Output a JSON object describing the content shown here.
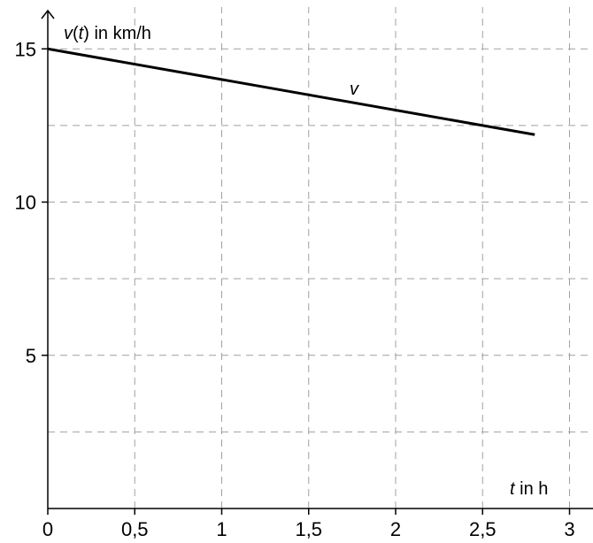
{
  "chart_data": {
    "type": "line",
    "xlabel_var": "t",
    "xlabel_rest": " in h",
    "ylabel_var1": "v",
    "ylabel_paren_open": "(",
    "ylabel_var2": "t",
    "ylabel_rest": ") in km/h",
    "xlim": [
      0,
      3
    ],
    "ylim": [
      0,
      15
    ],
    "grid": true,
    "x_ticks": [
      {
        "value": 0,
        "label": "0"
      },
      {
        "value": 0.5,
        "label": "0,5"
      },
      {
        "value": 1,
        "label": "1"
      },
      {
        "value": 1.5,
        "label": "1,5"
      },
      {
        "value": 2,
        "label": "2"
      },
      {
        "value": 2.5,
        "label": "2,5"
      },
      {
        "value": 3,
        "label": "3"
      }
    ],
    "y_ticks": [
      {
        "value": 5,
        "label": "5"
      },
      {
        "value": 10,
        "label": "10"
      },
      {
        "value": 15,
        "label": "15"
      }
    ],
    "x_grid": [
      0.5,
      1,
      1.5,
      2,
      2.5,
      3
    ],
    "y_grid": [
      2.5,
      5,
      7.5,
      10,
      12.5,
      15
    ],
    "series": [
      {
        "name": "v",
        "x": [
          0,
          2.8
        ],
        "y": [
          15,
          12.2
        ]
      }
    ]
  }
}
